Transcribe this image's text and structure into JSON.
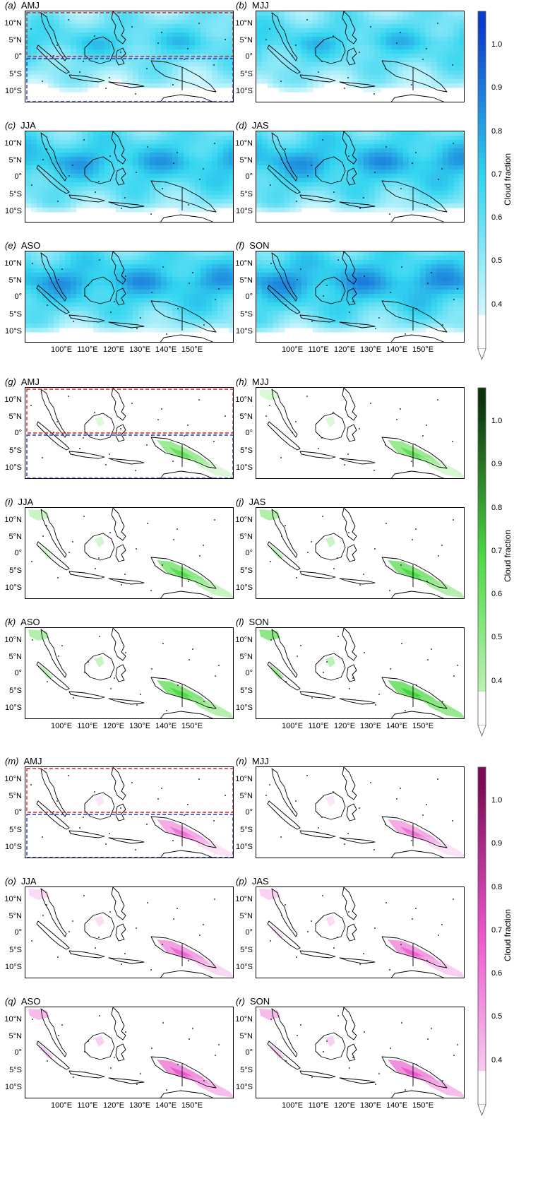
{
  "row_labels": {
    "latitudes": [
      "10°N",
      "5°N",
      "0°",
      "5°S",
      "10°S"
    ],
    "longitudes": [
      "100°E",
      "110°E",
      "120°E",
      "130°E",
      "140°E",
      "150°E"
    ]
  },
  "colorbar": {
    "title": "Cloud fraction",
    "ticks": [
      "1.0",
      "0.9",
      "0.8",
      "0.7",
      "0.6",
      "0.5",
      "0.4"
    ]
  },
  "groups": [
    {
      "color_low": "#e6fbff",
      "color_mid": "#33d5f0",
      "color_high": "#0a3ccc",
      "coverage": "full",
      "panels": [
        {
          "letter": "(a)",
          "season": "AMJ",
          "level": 0.62,
          "boxes": true
        },
        {
          "letter": "(b)",
          "season": "MJJ",
          "level": 0.64,
          "boxes": false
        },
        {
          "letter": "(c)",
          "season": "JJA",
          "level": 0.7,
          "boxes": false
        },
        {
          "letter": "(d)",
          "season": "JAS",
          "level": 0.72,
          "boxes": false
        },
        {
          "letter": "(e)",
          "season": "ASO",
          "level": 0.72,
          "boxes": false
        },
        {
          "letter": "(f)",
          "season": "SON",
          "level": 0.74,
          "boxes": false
        }
      ]
    },
    {
      "color_low": "#c8f5c0",
      "color_mid": "#4cd845",
      "color_high": "#0b330b",
      "coverage": "sparse",
      "panels": [
        {
          "letter": "(g)",
          "season": "AMJ",
          "level": 0.45,
          "boxes": true
        },
        {
          "letter": "(h)",
          "season": "MJJ",
          "level": 0.46,
          "boxes": false
        },
        {
          "letter": "(i)",
          "season": "JJA",
          "level": 0.48,
          "boxes": false
        },
        {
          "letter": "(j)",
          "season": "JAS",
          "level": 0.5,
          "boxes": false
        },
        {
          "letter": "(k)",
          "season": "ASO",
          "level": 0.5,
          "boxes": false
        },
        {
          "letter": "(l)",
          "season": "SON",
          "level": 0.52,
          "boxes": false
        }
      ]
    },
    {
      "color_low": "#f8d8f4",
      "color_mid": "#ec55cc",
      "color_high": "#7a0a55",
      "coverage": "sparse",
      "panels": [
        {
          "letter": "(m)",
          "season": "AMJ",
          "level": 0.45,
          "boxes": true
        },
        {
          "letter": "(n)",
          "season": "MJJ",
          "level": 0.45,
          "boxes": false
        },
        {
          "letter": "(o)",
          "season": "JJA",
          "level": 0.47,
          "boxes": false
        },
        {
          "letter": "(p)",
          "season": "JAS",
          "level": 0.48,
          "boxes": false
        },
        {
          "letter": "(q)",
          "season": "ASO",
          "level": 0.5,
          "boxes": false
        },
        {
          "letter": "(r)",
          "season": "SON",
          "level": 0.5,
          "boxes": false
        }
      ]
    }
  ]
}
